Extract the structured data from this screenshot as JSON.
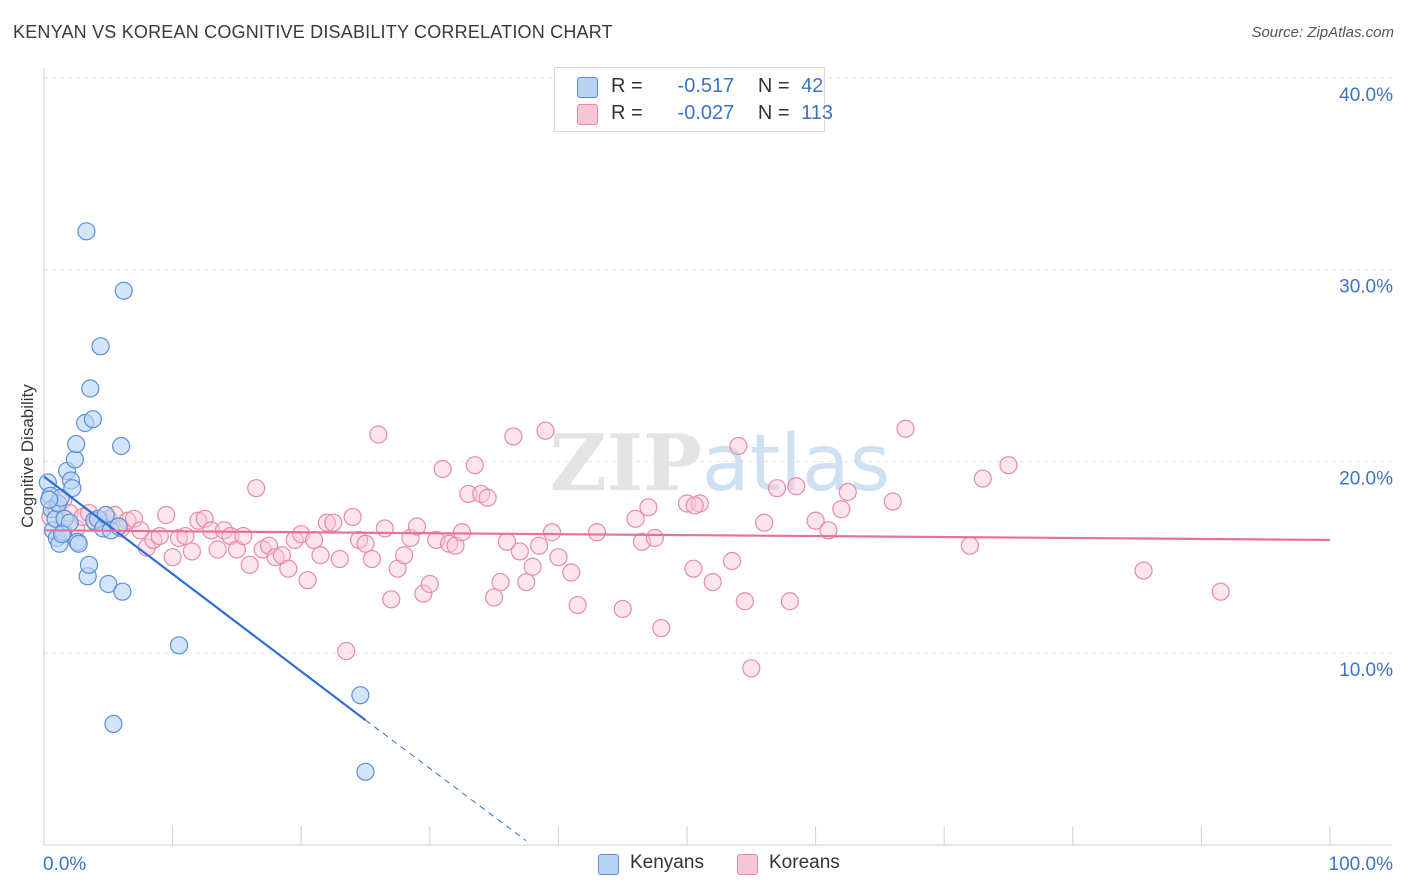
{
  "header": {
    "title": "KENYAN VS KOREAN COGNITIVE DISABILITY CORRELATION CHART",
    "source": "Source: ZipAtlas.com"
  },
  "legend": {
    "kenyans": {
      "r_label": "R =",
      "r_value": "-0.517",
      "n_label": "N =",
      "n_value": "42"
    },
    "koreans": {
      "r_label": "R =",
      "r_value": "-0.027",
      "n_label": "N =",
      "n_value": "113"
    }
  },
  "colors": {
    "kenyans_fill": "#b8d3f5",
    "kenyans_stroke": "#5a8fd8",
    "kenyans_line": "#2f6fd4",
    "koreans_fill": "#f9c6d6",
    "koreans_stroke": "#e88aa8",
    "koreans_line": "#e8709a",
    "grid": "#e2e2e2",
    "tick_label": "#3b73c8"
  },
  "chart_data": {
    "type": "scatter",
    "title": "KENYAN VS KOREAN COGNITIVE DISABILITY CORRELATION CHART",
    "xlabel": "",
    "ylabel": "Cognitive Disability",
    "xlim": [
      0,
      100
    ],
    "ylim": [
      0,
      41
    ],
    "x_tick_labels": [
      "0.0%",
      "100.0%"
    ],
    "y_ticks": [
      10,
      20,
      30,
      40
    ],
    "y_tick_labels": [
      "10.0%",
      "20.0%",
      "30.0%",
      "40.0%"
    ],
    "watermark": "ZIPatlas",
    "series": [
      {
        "name": "Kenyans",
        "trend": {
          "x0": 0,
          "y0": 19.2,
          "x1": 25,
          "y1": 6.5,
          "dashed_to_x": 37.5,
          "dashed_to_y": 0.2
        },
        "points": [
          [
            0.3,
            18.9
          ],
          [
            0.5,
            18.2
          ],
          [
            0.6,
            17.5
          ],
          [
            0.7,
            16.4
          ],
          [
            0.9,
            17.0
          ],
          [
            1.0,
            16.0
          ],
          [
            1.1,
            17.8
          ],
          [
            1.2,
            15.7
          ],
          [
            1.3,
            18.1
          ],
          [
            1.5,
            16.3
          ],
          [
            1.6,
            17.0
          ],
          [
            1.8,
            19.5
          ],
          [
            2.0,
            16.8
          ],
          [
            2.1,
            19.0
          ],
          [
            2.2,
            18.6
          ],
          [
            2.4,
            20.1
          ],
          [
            2.5,
            20.9
          ],
          [
            2.6,
            15.8
          ],
          [
            2.7,
            15.7
          ],
          [
            3.2,
            22.0
          ],
          [
            3.3,
            32.0
          ],
          [
            3.4,
            14.0
          ],
          [
            3.5,
            14.6
          ],
          [
            3.6,
            23.8
          ],
          [
            3.8,
            22.2
          ],
          [
            3.9,
            16.9
          ],
          [
            4.2,
            17.0
          ],
          [
            4.4,
            26.0
          ],
          [
            4.6,
            16.5
          ],
          [
            4.8,
            17.2
          ],
          [
            5.0,
            13.6
          ],
          [
            5.2,
            16.4
          ],
          [
            5.4,
            6.3
          ],
          [
            5.8,
            16.6
          ],
          [
            6.0,
            20.8
          ],
          [
            6.1,
            13.2
          ],
          [
            6.2,
            28.9
          ],
          [
            10.5,
            10.4
          ],
          [
            24.6,
            7.8
          ],
          [
            25.0,
            3.8
          ],
          [
            0.4,
            18.0
          ],
          [
            1.4,
            16.2
          ]
        ]
      },
      {
        "name": "Koreans",
        "trend": {
          "x0": 0,
          "y0": 16.4,
          "x1": 100,
          "y1": 15.9
        },
        "points": [
          [
            0.5,
            17.1
          ],
          [
            1.0,
            17.5
          ],
          [
            1.5,
            18.0
          ],
          [
            2.0,
            17.3
          ],
          [
            2.5,
            16.5
          ],
          [
            3.0,
            17.1
          ],
          [
            3.5,
            17.3
          ],
          [
            4.0,
            16.8
          ],
          [
            4.5,
            16.9
          ],
          [
            5.0,
            17.0
          ],
          [
            5.5,
            17.2
          ],
          [
            6.0,
            16.5
          ],
          [
            6.5,
            16.9
          ],
          [
            7.0,
            17.0
          ],
          [
            7.5,
            16.4
          ],
          [
            8.0,
            15.5
          ],
          [
            8.5,
            15.9
          ],
          [
            9.0,
            16.1
          ],
          [
            9.5,
            17.2
          ],
          [
            10.0,
            15.0
          ],
          [
            10.5,
            16.0
          ],
          [
            11.0,
            16.1
          ],
          [
            11.5,
            15.3
          ],
          [
            12.0,
            16.9
          ],
          [
            12.5,
            17.0
          ],
          [
            13.0,
            16.4
          ],
          [
            13.5,
            15.4
          ],
          [
            14.0,
            16.4
          ],
          [
            14.5,
            16.1
          ],
          [
            15.0,
            15.4
          ],
          [
            15.5,
            16.1
          ],
          [
            16.0,
            14.6
          ],
          [
            16.5,
            18.6
          ],
          [
            17.0,
            15.4
          ],
          [
            17.5,
            15.6
          ],
          [
            18.0,
            15.0
          ],
          [
            18.5,
            15.1
          ],
          [
            19.0,
            14.4
          ],
          [
            19.5,
            15.9
          ],
          [
            20.0,
            16.2
          ],
          [
            20.5,
            13.8
          ],
          [
            21.0,
            15.9
          ],
          [
            21.5,
            15.1
          ],
          [
            22.0,
            16.8
          ],
          [
            22.5,
            16.8
          ],
          [
            23.0,
            14.9
          ],
          [
            23.5,
            10.1
          ],
          [
            24.0,
            17.1
          ],
          [
            24.5,
            15.9
          ],
          [
            25.0,
            15.7
          ],
          [
            25.5,
            14.9
          ],
          [
            26.0,
            21.4
          ],
          [
            26.5,
            16.5
          ],
          [
            27.0,
            12.8
          ],
          [
            27.5,
            14.4
          ],
          [
            28.0,
            15.1
          ],
          [
            28.5,
            16.0
          ],
          [
            29.0,
            16.6
          ],
          [
            29.5,
            13.1
          ],
          [
            30.0,
            13.6
          ],
          [
            30.5,
            15.9
          ],
          [
            31.0,
            19.6
          ],
          [
            31.5,
            15.7
          ],
          [
            32.0,
            15.6
          ],
          [
            32.5,
            16.3
          ],
          [
            33.0,
            18.3
          ],
          [
            33.5,
            19.8
          ],
          [
            34.0,
            18.3
          ],
          [
            34.5,
            18.1
          ],
          [
            35.0,
            12.9
          ],
          [
            35.5,
            13.7
          ],
          [
            36.0,
            15.8
          ],
          [
            36.5,
            21.3
          ],
          [
            37.0,
            15.3
          ],
          [
            37.5,
            13.7
          ],
          [
            38.0,
            14.5
          ],
          [
            38.5,
            15.6
          ],
          [
            39.0,
            21.6
          ],
          [
            39.5,
            16.3
          ],
          [
            40.0,
            15.0
          ],
          [
            41.0,
            14.2
          ],
          [
            41.5,
            12.5
          ],
          [
            43.0,
            16.3
          ],
          [
            45.0,
            12.3
          ],
          [
            46.0,
            17.0
          ],
          [
            46.5,
            15.8
          ],
          [
            47.0,
            17.6
          ],
          [
            47.5,
            16.0
          ],
          [
            48.0,
            11.3
          ],
          [
            50.0,
            17.8
          ],
          [
            50.5,
            14.4
          ],
          [
            51.0,
            17.8
          ],
          [
            52.0,
            13.7
          ],
          [
            53.5,
            14.8
          ],
          [
            54.0,
            20.8
          ],
          [
            54.5,
            12.7
          ],
          [
            55.0,
            9.2
          ],
          [
            56.0,
            16.8
          ],
          [
            57.0,
            18.6
          ],
          [
            58.0,
            12.7
          ],
          [
            58.5,
            18.7
          ],
          [
            60.0,
            16.9
          ],
          [
            61.0,
            16.4
          ],
          [
            62.0,
            17.5
          ],
          [
            62.5,
            18.4
          ],
          [
            66.0,
            17.9
          ],
          [
            67.0,
            21.7
          ],
          [
            72.0,
            15.6
          ],
          [
            73.0,
            19.1
          ],
          [
            75.0,
            19.8
          ],
          [
            85.5,
            14.3
          ],
          [
            91.5,
            13.2
          ],
          [
            50.6,
            17.7
          ]
        ]
      }
    ]
  },
  "bottom_legend": {
    "kenyans": "Kenyans",
    "koreans": "Koreans"
  }
}
